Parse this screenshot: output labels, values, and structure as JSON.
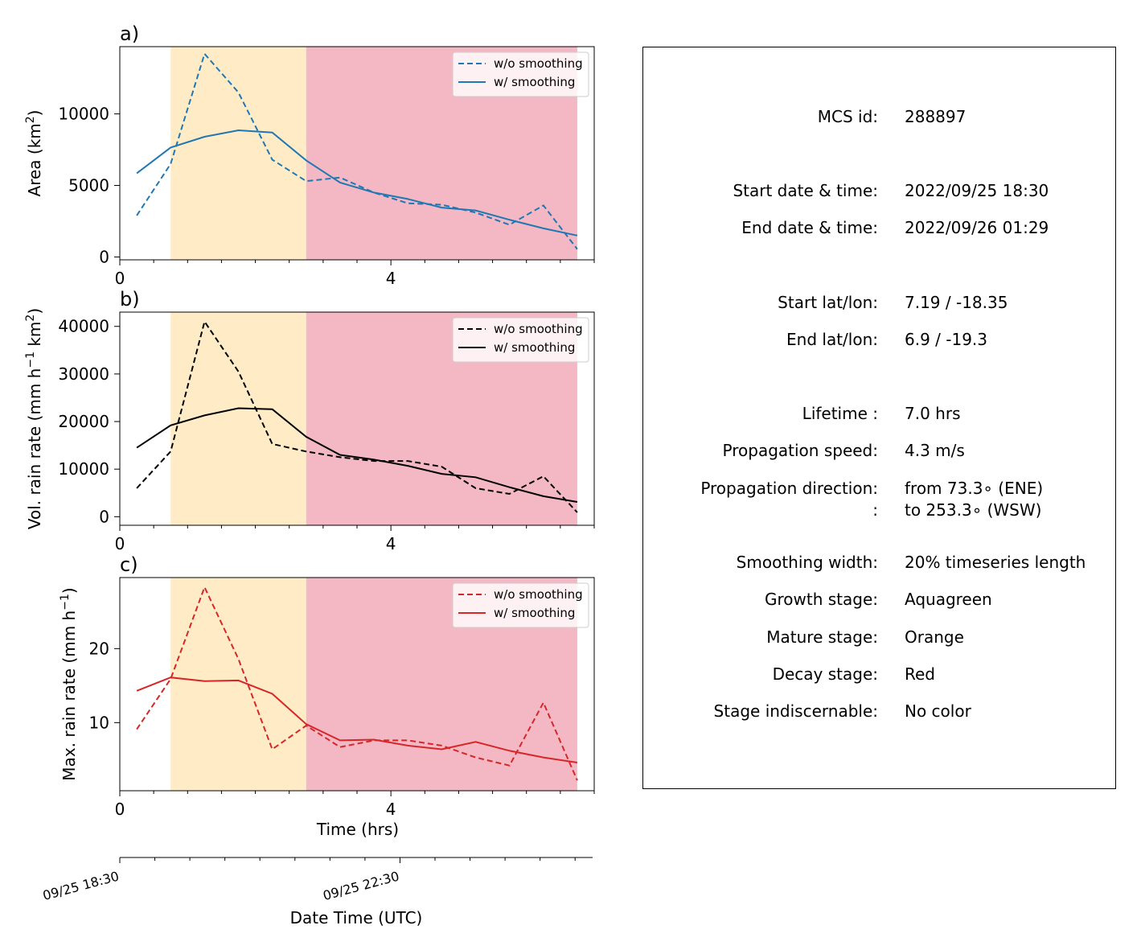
{
  "chart_data": [
    {
      "type": "line",
      "panel_label": "a)",
      "ylabel_main": "Area  (km",
      "ylabel_sup": "2",
      "ylabel_end": ")",
      "xlabel": "",
      "xlim": [
        0,
        7
      ],
      "ylim": [
        -200,
        14700
      ],
      "xticks": [
        0,
        4
      ],
      "xtick_labels": [
        "0",
        "4"
      ],
      "yticks": [
        0,
        5000,
        10000
      ],
      "ytick_labels": [
        "0",
        "5000",
        "10000"
      ],
      "color": "#1f77b4",
      "stages": [
        {
          "name": "mature",
          "x0": 0.75,
          "x1": 2.75,
          "color": "#ffecc7"
        },
        {
          "name": "decay",
          "x0": 2.75,
          "x1": 6.75,
          "color": "#f3b8c4"
        }
      ],
      "legend": {
        "position": "upper right",
        "entries": [
          "w/o smoothing",
          "w/ smoothing"
        ]
      },
      "series": [
        {
          "name": "w/o smoothing",
          "style": "dashed",
          "x": [
            0.25,
            0.75,
            1.25,
            1.75,
            2.25,
            2.75,
            3.25,
            3.75,
            4.25,
            4.75,
            5.25,
            5.75,
            6.25,
            6.75
          ],
          "values": [
            2900,
            6500,
            14200,
            11500,
            6800,
            5300,
            5550,
            4500,
            3750,
            3650,
            3100,
            2250,
            3600,
            550
          ]
        },
        {
          "name": "w/ smoothing",
          "style": "solid",
          "x": [
            0.25,
            0.75,
            1.25,
            1.75,
            2.25,
            2.75,
            3.25,
            3.75,
            4.25,
            4.75,
            5.25,
            5.75,
            6.25,
            6.75
          ],
          "values": [
            5850,
            7650,
            8400,
            8850,
            8700,
            6750,
            5200,
            4500,
            4050,
            3450,
            3250,
            2600,
            2000,
            1500
          ]
        }
      ]
    },
    {
      "type": "line",
      "panel_label": "b)",
      "ylabel_main": "Vol. rain rate (mm h",
      "ylabel_sup": "−1",
      "ylabel_mid": " km",
      "ylabel_sup2": "2",
      "ylabel_end": ")",
      "xlabel": "",
      "xlim": [
        0,
        7
      ],
      "ylim": [
        -1800,
        43000
      ],
      "xticks": [
        0,
        4
      ],
      "xtick_labels": [
        "0",
        "4"
      ],
      "yticks": [
        0,
        10000,
        20000,
        30000,
        40000
      ],
      "ytick_labels": [
        "0",
        "10000",
        "20000",
        "30000",
        "40000"
      ],
      "color": "#000000",
      "stages": [
        {
          "name": "mature",
          "x0": 0.75,
          "x1": 2.75,
          "color": "#ffecc7"
        },
        {
          "name": "decay",
          "x0": 2.75,
          "x1": 6.75,
          "color": "#f3b8c4"
        }
      ],
      "legend": {
        "position": "upper right",
        "entries": [
          "w/o smoothing",
          "w/ smoothing"
        ]
      },
      "series": [
        {
          "name": "w/o smoothing",
          "style": "dashed",
          "x": [
            0.25,
            0.75,
            1.25,
            1.75,
            2.25,
            2.75,
            3.25,
            3.75,
            4.25,
            4.75,
            5.25,
            5.75,
            6.25,
            6.75
          ],
          "values": [
            6000,
            13700,
            41000,
            30500,
            15300,
            13700,
            12500,
            11700,
            11700,
            10500,
            6000,
            4800,
            8500,
            900
          ]
        },
        {
          "name": "w/ smoothing",
          "style": "solid",
          "x": [
            0.25,
            0.75,
            1.25,
            1.75,
            2.25,
            2.75,
            3.25,
            3.75,
            4.25,
            4.75,
            5.25,
            5.75,
            6.25,
            6.75
          ],
          "values": [
            14500,
            19200,
            21300,
            22800,
            22600,
            16800,
            13000,
            12000,
            10700,
            9000,
            8300,
            6200,
            4300,
            3100
          ]
        }
      ]
    },
    {
      "type": "line",
      "panel_label": "c)",
      "ylabel_main": "Max. rain rate  (mm h",
      "ylabel_sup": "−1",
      "ylabel_end": ")",
      "xlabel": "Time (hrs)",
      "xlim": [
        0,
        7
      ],
      "ylim": [
        0.8,
        29.6
      ],
      "xticks": [
        0,
        4
      ],
      "xtick_labels": [
        "0",
        "4"
      ],
      "yticks": [
        10,
        20
      ],
      "ytick_labels": [
        "10",
        "20"
      ],
      "color": "#d62728",
      "stages": [
        {
          "name": "mature",
          "x0": 0.75,
          "x1": 2.75,
          "color": "#ffecc7"
        },
        {
          "name": "decay",
          "x0": 2.75,
          "x1": 6.75,
          "color": "#f3b8c4"
        }
      ],
      "legend": {
        "position": "upper right",
        "entries": [
          "w/o smoothing",
          "w/ smoothing"
        ]
      },
      "series": [
        {
          "name": "w/o smoothing",
          "style": "dashed",
          "x": [
            0.25,
            0.75,
            1.25,
            1.75,
            2.25,
            2.75,
            3.25,
            3.75,
            4.25,
            4.75,
            5.25,
            5.75,
            6.25,
            6.75
          ],
          "values": [
            9.1,
            15.9,
            28.3,
            18.6,
            6.4,
            9.6,
            6.7,
            7.6,
            7.6,
            6.9,
            5.3,
            4.2,
            12.7,
            2.2
          ]
        },
        {
          "name": "w/ smoothing",
          "style": "solid",
          "x": [
            0.25,
            0.75,
            1.25,
            1.75,
            2.25,
            2.75,
            3.25,
            3.75,
            4.25,
            4.75,
            5.25,
            5.75,
            6.25,
            6.75
          ],
          "values": [
            14.3,
            16.1,
            15.6,
            15.7,
            13.9,
            9.8,
            7.6,
            7.7,
            6.9,
            6.4,
            7.4,
            6.2,
            5.3,
            4.6
          ]
        }
      ]
    }
  ],
  "datetime_axis": {
    "xlabel": "Date Time (UTC)",
    "range_hours": [
      0,
      6.75
    ],
    "labeled_ticks": [
      {
        "hour": 0,
        "label": "09/25 18:30"
      },
      {
        "hour": 4,
        "label": "09/25 22:30"
      }
    ],
    "minor_tick_hours": [
      0.5,
      1,
      1.5,
      2,
      2.5,
      3,
      3.5,
      4.5,
      5,
      5.5,
      6,
      6.5
    ]
  },
  "info": {
    "rows": [
      {
        "label": "MCS id:",
        "value": "288897"
      },
      {
        "label": "Start date & time:",
        "value": "2022/09/25 18:30"
      },
      {
        "label": "End date & time:",
        "value": "2022/09/26 01:29"
      },
      {
        "label": "Start lat/lon:",
        "value": "7.19 / -18.35"
      },
      {
        "label": "End lat/lon:",
        "value": "6.9 / -19.3"
      },
      {
        "label": "Lifetime :",
        "value": "7.0 hrs"
      },
      {
        "label": "Propagation speed:",
        "value": "4.3 m/s"
      },
      {
        "label": "Propagation direction:",
        "value": "from  73.3∘ (ENE)"
      },
      {
        "label": ":",
        "value": "to   253.3∘ (WSW)"
      },
      {
        "label": "Smoothing width:",
        "value": "20% timeseries length"
      },
      {
        "label": "Growth stage:",
        "value": "Aquagreen"
      },
      {
        "label": "Mature stage:",
        "value": "Orange"
      },
      {
        "label": "Decay stage:",
        "value": "Red"
      },
      {
        "label": "Stage indiscernable:",
        "value": "No color"
      }
    ]
  }
}
